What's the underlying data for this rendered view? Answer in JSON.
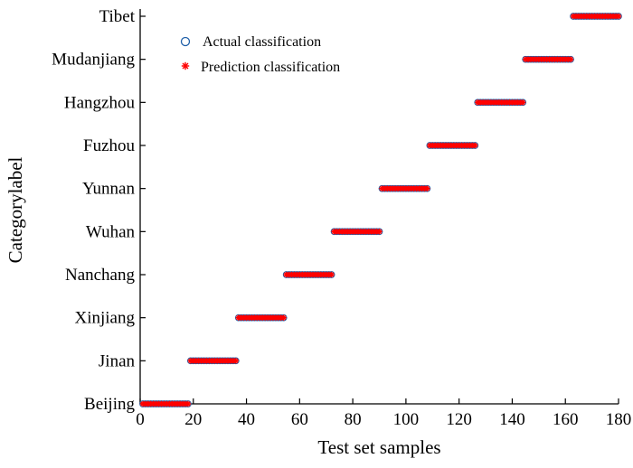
{
  "chart_data": {
    "type": "scatter",
    "xlabel": "Test set samples",
    "ylabel": "Categorylabel",
    "xlim": [
      0,
      180
    ],
    "x_ticks": [
      0,
      20,
      40,
      60,
      80,
      100,
      120,
      140,
      160,
      180
    ],
    "categories": [
      "Beijing",
      "Jinan",
      "Xinjiang",
      "Nanchang",
      "Wuhan",
      "Yunnan",
      "Fuzhou",
      "Hangzhou",
      "Mudanjiang",
      "Tibet"
    ],
    "grid": false,
    "legend_position": "top-left",
    "series": [
      {
        "name": "Actual classification",
        "marker": "circle",
        "color": "#1f5fa8",
        "ranges": [
          {
            "category": "Beijing",
            "x_start": 1,
            "x_end": 18
          },
          {
            "category": "Jinan",
            "x_start": 19,
            "x_end": 36
          },
          {
            "category": "Xinjiang",
            "x_start": 37,
            "x_end": 54
          },
          {
            "category": "Nanchang",
            "x_start": 55,
            "x_end": 72
          },
          {
            "category": "Wuhan",
            "x_start": 73,
            "x_end": 90
          },
          {
            "category": "Yunnan",
            "x_start": 91,
            "x_end": 108
          },
          {
            "category": "Fuzhou",
            "x_start": 109,
            "x_end": 126
          },
          {
            "category": "Hangzhou",
            "x_start": 127,
            "x_end": 144
          },
          {
            "category": "Mudanjiang",
            "x_start": 145,
            "x_end": 162
          },
          {
            "category": "Tibet",
            "x_start": 163,
            "x_end": 180
          }
        ]
      },
      {
        "name": "Prediction classification",
        "marker": "asterisk",
        "color": "#ff0000",
        "ranges": [
          {
            "category": "Beijing",
            "x_start": 1,
            "x_end": 18
          },
          {
            "category": "Jinan",
            "x_start": 19,
            "x_end": 36
          },
          {
            "category": "Xinjiang",
            "x_start": 37,
            "x_end": 54
          },
          {
            "category": "Nanchang",
            "x_start": 55,
            "x_end": 72
          },
          {
            "category": "Wuhan",
            "x_start": 73,
            "x_end": 90
          },
          {
            "category": "Yunnan",
            "x_start": 91,
            "x_end": 108
          },
          {
            "category": "Fuzhou",
            "x_start": 109,
            "x_end": 126
          },
          {
            "category": "Hangzhou",
            "x_start": 127,
            "x_end": 144
          },
          {
            "category": "Mudanjiang",
            "x_start": 145,
            "x_end": 162
          },
          {
            "category": "Tibet",
            "x_start": 163,
            "x_end": 180
          }
        ]
      }
    ]
  }
}
